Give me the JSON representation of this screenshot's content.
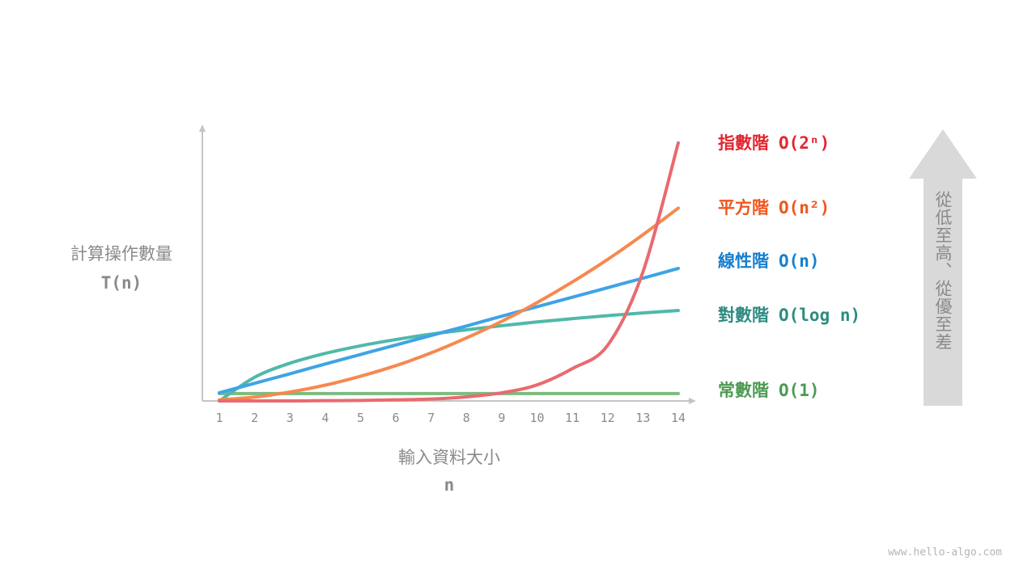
{
  "chart_data": {
    "type": "line",
    "title": "",
    "xlabel": "輸入資料大小",
    "xlabel_symbol": "n",
    "ylabel": "計算操作數量",
    "ylabel_symbol": "T(n)",
    "x": [
      1,
      2,
      3,
      4,
      5,
      6,
      7,
      8,
      9,
      10,
      11,
      12,
      13,
      14
    ],
    "x_tick_labels": [
      "1",
      "2",
      "3",
      "4",
      "5",
      "6",
      "7",
      "8",
      "9",
      "10",
      "11",
      "12",
      "13",
      "14"
    ],
    "xlim": [
      1,
      14
    ],
    "ylim": [
      0,
      100
    ],
    "y_ticks_shown": false,
    "grid": false,
    "legend": "right",
    "series": [
      {
        "name": "指數階",
        "complexity": "O(2ⁿ)",
        "color": "#e96a6f",
        "label_color": "#e3262f",
        "values": [
          0.0,
          0.0,
          0.0,
          0.1,
          0.2,
          0.4,
          0.7,
          1.5,
          3.0,
          5.9,
          11.9,
          20.5,
          47.5,
          95.0
        ]
      },
      {
        "name": "平方階",
        "complexity": "O(n²)",
        "color": "#f6894f",
        "label_color": "#f1561c",
        "values": [
          0.4,
          1.4,
          3.3,
          5.8,
          9.1,
          13.0,
          17.7,
          23.2,
          29.3,
          36.2,
          43.8,
          52.1,
          61.2,
          71.0
        ]
      },
      {
        "name": "線性階",
        "complexity": "O(n)",
        "color": "#3fa3e6",
        "label_color": "#177fcf",
        "values": [
          3.0,
          6.5,
          10.0,
          13.6,
          17.1,
          20.6,
          24.1,
          27.6,
          31.2,
          34.7,
          38.2,
          41.7,
          45.2,
          48.8
        ]
      },
      {
        "name": "對數階",
        "complexity": "O(log n)",
        "color": "#4fb9a9",
        "label_color": "#2e8b82",
        "values": [
          0.0,
          8.7,
          13.9,
          17.5,
          20.3,
          22.6,
          24.6,
          26.2,
          27.7,
          29.1,
          30.3,
          31.4,
          32.4,
          33.3
        ]
      },
      {
        "name": "常數階",
        "complexity": "O(1)",
        "color": "#7cbb7f",
        "label_color": "#4b9a52",
        "values": [
          2.7,
          2.7,
          2.7,
          2.7,
          2.7,
          2.7,
          2.7,
          2.7,
          2.7,
          2.7,
          2.7,
          2.7,
          2.7,
          2.7
        ]
      }
    ]
  },
  "side_arrow": {
    "text": "從低至高、從優至差",
    "color": "#d9d9d9",
    "text_color": "#8a8a8a"
  },
  "watermark": "www.hello-algo.com"
}
